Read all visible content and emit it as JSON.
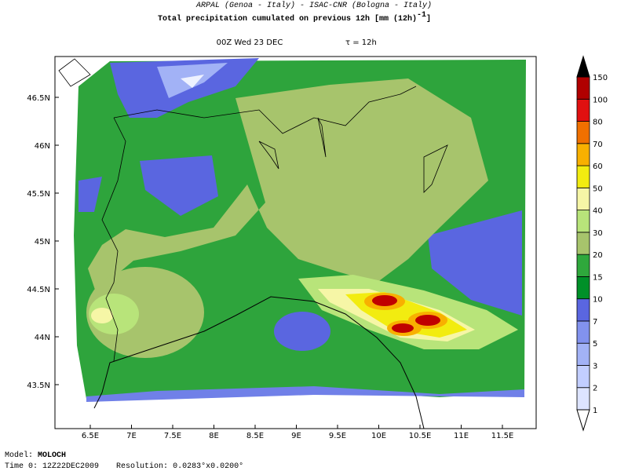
{
  "header": {
    "credit": "ARPAL (Genoa - Italy)  -  ISAC-CNR (Bologna - Italy)",
    "title": "Total precipitation cumulated on previous 12h [mm (12h)",
    "title_exponent": "-1",
    "title_close": "]",
    "time": "00Z Wed 23 DEC",
    "lead": "τ = 12h"
  },
  "map": {
    "lon_ticks": [
      "6.5E",
      "7E",
      "7.5E",
      "8E",
      "8.5E",
      "9E",
      "9.5E",
      "10E",
      "10.5E",
      "11E",
      "11.5E"
    ],
    "lat_ticks": [
      "46.5N",
      "46N",
      "45.5N",
      "45N",
      "44.5N",
      "44N",
      "43.5N"
    ]
  },
  "colorbar": {
    "levels": [
      1,
      2,
      3,
      5,
      7,
      10,
      15,
      20,
      30,
      40,
      50,
      60,
      70,
      80,
      100,
      150
    ],
    "colors": [
      "#dde4ff",
      "#c2ceff",
      "#a2b2f6",
      "#8292ee",
      "#5a66e0",
      "#009028",
      "#2fa83c",
      "#a7c46c",
      "#b8e47a",
      "#f6f6a6",
      "#f2ec10",
      "#f8b000",
      "#f07000",
      "#e01010",
      "#b00000"
    ],
    "over_color": "#000000",
    "under_color": "#ffffff"
  },
  "footer": {
    "model_label": "Model:",
    "model": "MOLOCH",
    "time_label": "Time 0:",
    "time": "12Z22DEC2009",
    "resolution_label": "Resolution:",
    "resolution": "0.0283°x0.0200°"
  }
}
